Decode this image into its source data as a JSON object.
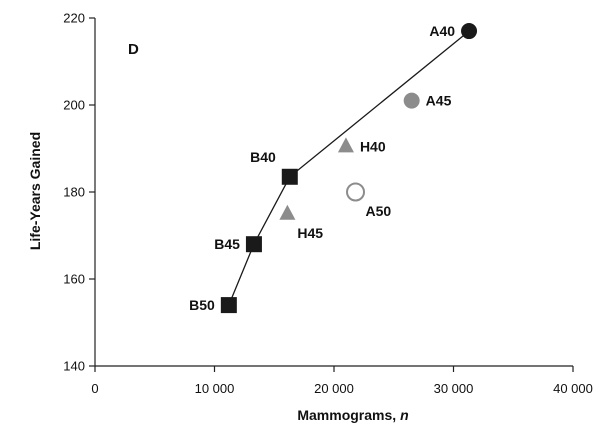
{
  "chart_data": {
    "type": "scatter",
    "panel_label": "D",
    "xlabel": "Mammograms, ",
    "xlabel_italic": "n",
    "ylabel": "Life-Years Gained",
    "xlim": [
      0,
      40000
    ],
    "ylim": [
      140,
      220
    ],
    "x_ticks": [
      0,
      10000,
      20000,
      30000,
      40000
    ],
    "x_tick_labels": [
      "0",
      "10 000",
      "20 000",
      "30 000",
      "40 000"
    ],
    "y_ticks": [
      140,
      160,
      180,
      200,
      220
    ],
    "y_tick_labels": [
      "140",
      "160",
      "180",
      "200",
      "220"
    ],
    "grid": false,
    "legend": "none",
    "colors": {
      "black": "#1a1a1a",
      "gray": "#8c8c8c",
      "hollow_stroke": "#8c8c8c",
      "axis": "#222222"
    },
    "frontier_line": [
      "B50",
      "B45",
      "B40",
      "A40"
    ],
    "points": [
      {
        "label": "A40",
        "x": 31300,
        "y": 217,
        "marker": "circle",
        "fill": "black",
        "label_side": "left"
      },
      {
        "label": "A45",
        "x": 26500,
        "y": 201,
        "marker": "circle",
        "fill": "gray",
        "label_side": "right"
      },
      {
        "label": "A50",
        "x": 21800,
        "y": 180,
        "marker": "circle",
        "fill": "hollow",
        "label_side": "below-right"
      },
      {
        "label": "H40",
        "x": 21000,
        "y": 190.5,
        "marker": "triangle",
        "fill": "gray",
        "label_side": "right"
      },
      {
        "label": "H45",
        "x": 16100,
        "y": 175,
        "marker": "triangle",
        "fill": "gray",
        "label_side": "below-right"
      },
      {
        "label": "B40",
        "x": 16300,
        "y": 183.5,
        "marker": "square",
        "fill": "black",
        "label_side": "left-up"
      },
      {
        "label": "B45",
        "x": 13300,
        "y": 168,
        "marker": "square",
        "fill": "black",
        "label_side": "left"
      },
      {
        "label": "B50",
        "x": 11200,
        "y": 154,
        "marker": "square",
        "fill": "black",
        "label_side": "left"
      }
    ]
  }
}
